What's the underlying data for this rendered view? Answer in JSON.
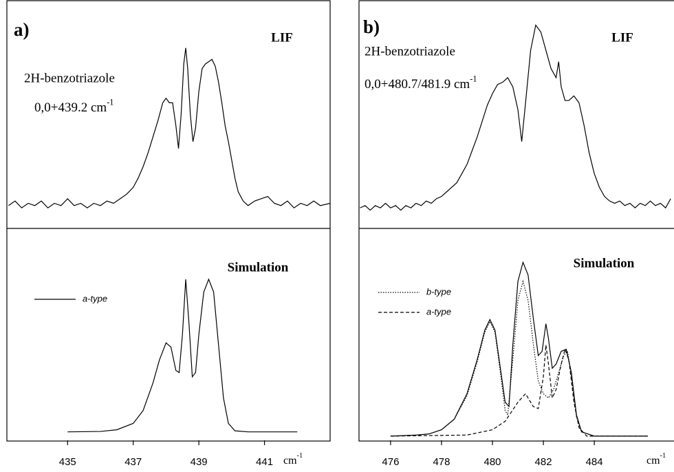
{
  "chart_data": [
    {
      "type": "line",
      "panel_label": "a)",
      "title": "LIF",
      "annotations": [
        {
          "text": "2H-benzotriazole"
        },
        {
          "text": "0,0+439.2 cm",
          "superscript": "-1"
        }
      ],
      "xlim": [
        433.15,
        443.0
      ],
      "ylim": [
        0,
        1
      ],
      "series": [
        {
          "color": "#000000",
          "dash": "solid",
          "x": [
            433.2,
            433.4,
            433.6,
            433.8,
            434.0,
            434.2,
            434.4,
            434.6,
            434.8,
            435.0,
            435.2,
            435.4,
            435.6,
            435.8,
            436.0,
            436.2,
            436.4,
            436.6,
            436.8,
            437.0,
            437.15,
            437.3,
            437.45,
            437.6,
            437.75,
            437.9,
            438.0,
            438.1,
            438.2,
            438.3,
            438.38,
            438.46,
            438.54,
            438.6,
            438.66,
            438.74,
            438.82,
            438.9,
            439.0,
            439.1,
            439.2,
            439.3,
            439.4,
            439.5,
            439.6,
            439.7,
            439.8,
            439.9,
            440.0,
            440.1,
            440.2,
            440.35,
            440.5,
            440.7,
            440.9,
            441.1,
            441.3,
            441.5,
            441.7,
            441.9,
            442.1,
            442.3,
            442.5,
            442.7,
            443.0
          ],
          "values": [
            0.1,
            0.12,
            0.09,
            0.11,
            0.1,
            0.12,
            0.09,
            0.11,
            0.1,
            0.13,
            0.1,
            0.11,
            0.09,
            0.11,
            0.1,
            0.12,
            0.11,
            0.13,
            0.15,
            0.18,
            0.22,
            0.27,
            0.33,
            0.4,
            0.47,
            0.55,
            0.57,
            0.55,
            0.55,
            0.45,
            0.35,
            0.5,
            0.72,
            0.79,
            0.7,
            0.5,
            0.38,
            0.44,
            0.6,
            0.7,
            0.72,
            0.73,
            0.74,
            0.71,
            0.64,
            0.55,
            0.45,
            0.38,
            0.3,
            0.22,
            0.16,
            0.12,
            0.1,
            0.12,
            0.13,
            0.14,
            0.11,
            0.1,
            0.12,
            0.09,
            0.11,
            0.1,
            0.12,
            0.1,
            0.11
          ]
        }
      ]
    },
    {
      "type": "line",
      "title": "Simulation",
      "xlabel": {
        "text": "cm",
        "superscript": "-1"
      },
      "xlim": [
        433.15,
        443.0
      ],
      "ylim": [
        0,
        1
      ],
      "xticks": [
        435,
        437,
        439,
        441
      ],
      "series": [
        {
          "name": "a-type",
          "color": "#000000",
          "dash": "solid",
          "x": [
            435.0,
            436.0,
            436.5,
            437.0,
            437.3,
            437.6,
            437.8,
            438.0,
            438.15,
            438.3,
            438.4,
            438.5,
            438.6,
            438.7,
            438.8,
            438.9,
            439.0,
            439.15,
            439.3,
            439.45,
            439.6,
            439.75,
            439.9,
            440.1,
            440.5,
            442.0
          ],
          "values": [
            0.04,
            0.042,
            0.05,
            0.08,
            0.14,
            0.27,
            0.38,
            0.46,
            0.44,
            0.33,
            0.32,
            0.5,
            0.76,
            0.55,
            0.3,
            0.32,
            0.5,
            0.7,
            0.76,
            0.7,
            0.45,
            0.2,
            0.08,
            0.045,
            0.04,
            0.04
          ]
        }
      ]
    },
    {
      "type": "line",
      "panel_label": "b)",
      "title": "LIF",
      "annotations": [
        {
          "text": "2H-benzotriazole"
        },
        {
          "text": "0,0+480.7/481.9 cm",
          "superscript": "-1"
        }
      ],
      "xlim": [
        474.76,
        487.13
      ],
      "ylim": [
        0,
        1
      ],
      "series": [
        {
          "color": "#000000",
          "dash": "solid",
          "x": [
            474.8,
            475.0,
            475.2,
            475.4,
            475.6,
            475.8,
            476.0,
            476.2,
            476.4,
            476.6,
            476.8,
            477.0,
            477.2,
            477.4,
            477.6,
            477.8,
            478.0,
            478.2,
            478.4,
            478.6,
            478.8,
            479.0,
            479.2,
            479.4,
            479.6,
            479.8,
            480.0,
            480.2,
            480.4,
            480.6,
            480.8,
            481.0,
            481.15,
            481.3,
            481.5,
            481.7,
            481.9,
            482.1,
            482.3,
            482.5,
            482.6,
            482.7,
            482.85,
            483.0,
            483.2,
            483.4,
            483.6,
            483.8,
            484.0,
            484.2,
            484.4,
            484.6,
            484.8,
            485.0,
            485.2,
            485.4,
            485.6,
            485.8,
            486.0,
            486.2,
            486.4,
            486.6,
            486.8,
            487.0
          ],
          "values": [
            0.09,
            0.1,
            0.08,
            0.1,
            0.09,
            0.11,
            0.09,
            0.1,
            0.08,
            0.1,
            0.09,
            0.11,
            0.1,
            0.12,
            0.11,
            0.13,
            0.14,
            0.16,
            0.18,
            0.2,
            0.24,
            0.28,
            0.34,
            0.4,
            0.47,
            0.54,
            0.59,
            0.63,
            0.64,
            0.66,
            0.62,
            0.52,
            0.38,
            0.55,
            0.78,
            0.89,
            0.86,
            0.78,
            0.7,
            0.66,
            0.73,
            0.62,
            0.56,
            0.56,
            0.58,
            0.55,
            0.45,
            0.33,
            0.24,
            0.18,
            0.14,
            0.12,
            0.11,
            0.12,
            0.1,
            0.11,
            0.09,
            0.11,
            0.1,
            0.12,
            0.1,
            0.11,
            0.09,
            0.13
          ]
        }
      ]
    },
    {
      "type": "line",
      "title": "Simulation",
      "xlabel": {
        "text": "cm",
        "superscript": "-1"
      },
      "xlim": [
        474.76,
        487.13
      ],
      "ylim": [
        0,
        1
      ],
      "xticks": [
        476,
        478,
        480,
        482,
        484
      ],
      "series": [
        {
          "color": "#000000",
          "dash": "solid",
          "x": [
            476.0,
            477.0,
            477.5,
            478.0,
            478.5,
            479.0,
            479.4,
            479.7,
            479.9,
            480.1,
            480.3,
            480.5,
            480.65,
            480.8,
            481.0,
            481.2,
            481.4,
            481.6,
            481.8,
            481.95,
            482.1,
            482.2,
            482.35,
            482.5,
            482.7,
            482.9,
            483.1,
            483.3,
            483.5,
            484.0,
            486.1
          ],
          "values": [
            0.02,
            0.025,
            0.03,
            0.05,
            0.1,
            0.22,
            0.38,
            0.52,
            0.57,
            0.52,
            0.35,
            0.18,
            0.16,
            0.45,
            0.75,
            0.84,
            0.78,
            0.58,
            0.4,
            0.42,
            0.55,
            0.48,
            0.34,
            0.36,
            0.42,
            0.43,
            0.32,
            0.12,
            0.04,
            0.02,
            0.02
          ]
        },
        {
          "name": "b-type",
          "color": "#000000",
          "dash": "dotted",
          "x": [
            476.0,
            477.0,
            477.5,
            478.0,
            478.5,
            479.0,
            479.4,
            479.7,
            479.9,
            480.1,
            480.3,
            480.5,
            480.6,
            480.8,
            481.0,
            481.2,
            481.4,
            481.6,
            481.8,
            482.0,
            482.2,
            482.4,
            482.6,
            482.8,
            482.95,
            483.1,
            483.3,
            483.5,
            484.0,
            486.1
          ],
          "values": [
            0.02,
            0.025,
            0.03,
            0.05,
            0.1,
            0.21,
            0.37,
            0.51,
            0.56,
            0.51,
            0.33,
            0.14,
            0.12,
            0.38,
            0.66,
            0.75,
            0.66,
            0.46,
            0.28,
            0.22,
            0.2,
            0.24,
            0.32,
            0.4,
            0.42,
            0.3,
            0.11,
            0.04,
            0.02,
            0.02
          ]
        },
        {
          "name": "a-type",
          "color": "#000000",
          "dash": "dashed",
          "x": [
            476.0,
            479.0,
            480.0,
            480.5,
            481.0,
            481.3,
            481.6,
            481.8,
            482.0,
            482.1,
            482.2,
            482.35,
            482.5,
            482.7,
            482.85,
            483.0,
            483.2,
            483.4,
            483.7,
            486.1
          ],
          "values": [
            0.02,
            0.025,
            0.05,
            0.09,
            0.18,
            0.22,
            0.16,
            0.15,
            0.3,
            0.45,
            0.36,
            0.2,
            0.24,
            0.36,
            0.43,
            0.38,
            0.18,
            0.06,
            0.02,
            0.02
          ]
        }
      ]
    }
  ]
}
